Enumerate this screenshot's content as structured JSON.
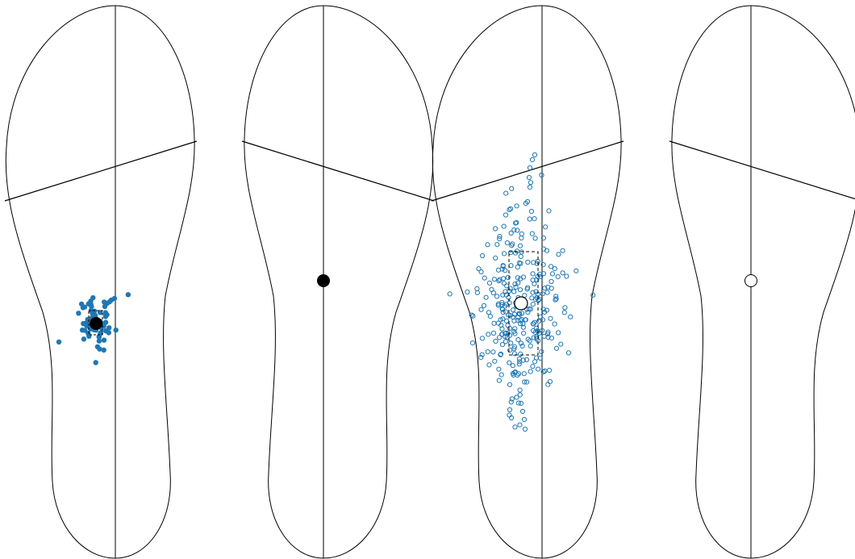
{
  "colors": {
    "outline": "#000000",
    "scatter_blue": "#1f77b4",
    "mean_fill_dark": "#000000",
    "mean_fill_light": "#ffffff",
    "background": "#ffffff"
  },
  "panels": [
    {
      "id": "panel-1",
      "style": "filled-scatter",
      "has_points": true,
      "mean_marker": "filled",
      "spread_box": true
    },
    {
      "id": "panel-2",
      "style": "mean-only",
      "has_points": false,
      "mean_marker": "filled",
      "spread_box": false
    },
    {
      "id": "panel-3",
      "style": "open-scatter",
      "has_points": true,
      "mean_marker": "open",
      "spread_box": true
    },
    {
      "id": "panel-4",
      "style": "mean-only",
      "has_points": false,
      "mean_marker": "open",
      "spread_box": false
    }
  ]
}
